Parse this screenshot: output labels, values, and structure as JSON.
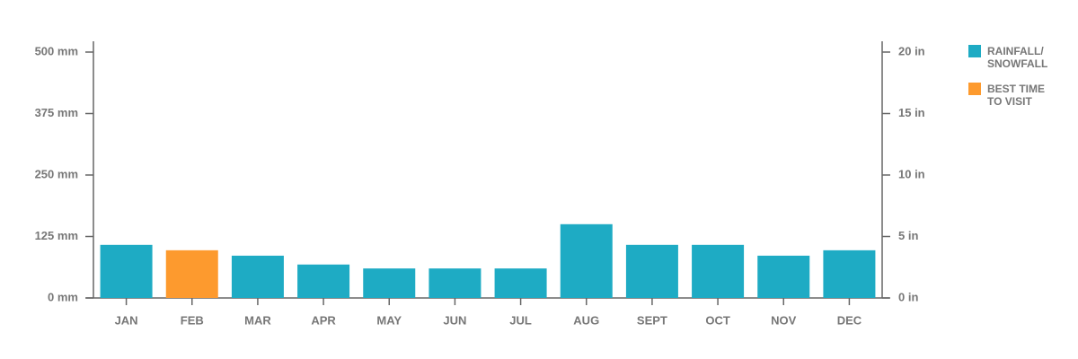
{
  "chart_data": {
    "type": "bar",
    "categories": [
      "JAN",
      "FEB",
      "MAR",
      "APR",
      "MAY",
      "JUN",
      "JUL",
      "AUG",
      "SEPT",
      "OCT",
      "NOV",
      "DEC"
    ],
    "series": [
      {
        "name": "RAINFALL/\nSNOWFALL",
        "color": "#1eabc4",
        "values": [
          108,
          null,
          86,
          68,
          60,
          60,
          60,
          150,
          108,
          108,
          86,
          97
        ]
      },
      {
        "name": "BEST TIME\nTO VISIT",
        "color": "#fd9a2e",
        "values": [
          null,
          97,
          null,
          null,
          null,
          null,
          null,
          null,
          null,
          null,
          null,
          null
        ]
      }
    ],
    "ylim": [
      0,
      500
    ],
    "yticks": [
      {
        "value": 0,
        "label": "0 mm"
      },
      {
        "value": 125,
        "label": "125 mm"
      },
      {
        "value": 250,
        "label": "250 mm"
      },
      {
        "value": 375,
        "label": "375 mm"
      },
      {
        "value": 500,
        "label": "500 mm"
      }
    ],
    "y2lim": [
      0,
      20
    ],
    "y2ticks": [
      {
        "value": 0,
        "label": "0 in"
      },
      {
        "value": 5,
        "label": "5 in"
      },
      {
        "value": 10,
        "label": "10 in"
      },
      {
        "value": 15,
        "label": "15 in"
      },
      {
        "value": 20,
        "label": "20 in"
      }
    ],
    "grid": false
  }
}
